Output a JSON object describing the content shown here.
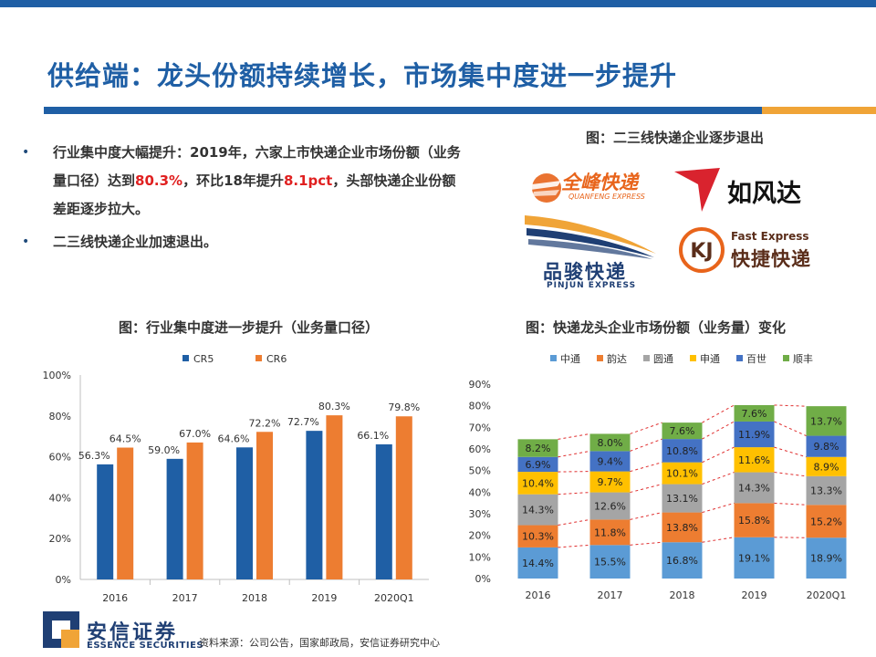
{
  "title": "供给端：龙头份额持续增长，市场集中度进一步提升",
  "bullets": [
    {
      "marker": "•",
      "parts": [
        {
          "text": "行业集中度大幅提升：2019年，六家上市快递企业市场份额（业务量口径）达到",
          "highlight": false
        },
        {
          "text": "80.3%",
          "highlight": true
        },
        {
          "text": "，环比18年提升",
          "highlight": false
        },
        {
          "text": "8.1pct",
          "highlight": true
        },
        {
          "text": "，头部快递企业份额差距逐步拉大。",
          "highlight": false
        }
      ]
    },
    {
      "marker": "•",
      "parts": [
        {
          "text": "二三线快递企业加速退出。",
          "highlight": false
        }
      ]
    }
  ],
  "logos_section": {
    "title": "图：二三线快递企业逐步退出",
    "logos": [
      {
        "name": "quanfeng",
        "cn": "全峰快递",
        "en": "QUANFENG EXPRESS",
        "color": "#e8641b"
      },
      {
        "name": "rufengda",
        "cn": "如风达",
        "color": "#d9232e"
      },
      {
        "name": "pinjun",
        "cn": "品骏快递",
        "en": "PINJUN EXPRESS",
        "color": "#1f3f74",
        "accent": "#f0a437"
      },
      {
        "name": "kuaijie",
        "cn": "快捷快递",
        "en": "Fast Express",
        "mark": "KJ",
        "color": "#5a2d1a",
        "accent": "#e8641b"
      }
    ]
  },
  "chart_data": [
    {
      "type": "bar",
      "title": "图：行业集中度进一步提升（业务量口径）",
      "categories": [
        "2016",
        "2017",
        "2018",
        "2019",
        "2020Q1"
      ],
      "series": [
        {
          "name": "CR5",
          "values": [
            56.3,
            59.0,
            64.6,
            72.7,
            66.1
          ],
          "labels": [
            "56.3%",
            "59.0%",
            "64.6%",
            "72.7%",
            "66.1%"
          ],
          "color": "#1f5fa5"
        },
        {
          "name": "CR6",
          "values": [
            64.5,
            67.0,
            72.2,
            80.3,
            79.8
          ],
          "labels": [
            "64.5%",
            "67.0%",
            "72.2%",
            "80.3%",
            "79.8%"
          ],
          "color": "#ed7d31"
        }
      ],
      "ylim": [
        0,
        100
      ],
      "yticks": [
        "0%",
        "20%",
        "40%",
        "60%",
        "80%",
        "100%"
      ],
      "legend": "top",
      "grid": false
    },
    {
      "type": "bar",
      "stacked": true,
      "title": "图：快递龙头企业市场份额（业务量）变化",
      "categories": [
        "2016",
        "2017",
        "2018",
        "2019",
        "2020Q1"
      ],
      "series": [
        {
          "name": "中通",
          "values": [
            14.4,
            15.5,
            16.8,
            19.1,
            18.9
          ],
          "labels": [
            "14.4%",
            "15.5%",
            "16.8%",
            "19.1%",
            "18.9%"
          ],
          "color": "#5b9bd5"
        },
        {
          "name": "韵达",
          "values": [
            10.3,
            11.8,
            13.8,
            15.8,
            15.2
          ],
          "labels": [
            "10.3%",
            "11.8%",
            "13.8%",
            "15.8%",
            "15.2%"
          ],
          "color": "#ed7d31"
        },
        {
          "name": "圆通",
          "values": [
            14.3,
            12.6,
            13.1,
            14.3,
            13.3
          ],
          "labels": [
            "14.3%",
            "12.6%",
            "13.1%",
            "14.3%",
            "13.3%"
          ],
          "color": "#a5a5a5"
        },
        {
          "name": "申通",
          "values": [
            10.4,
            9.7,
            10.1,
            11.6,
            8.9
          ],
          "labels": [
            "10.4%",
            "9.7%",
            "10.1%",
            "11.6%",
            "8.9%"
          ],
          "color": "#ffc000"
        },
        {
          "name": "百世",
          "values": [
            6.9,
            9.4,
            10.8,
            11.9,
            9.8
          ],
          "labels": [
            "6.9%",
            "9.4%",
            "10.8%",
            "11.9%",
            "9.8%"
          ],
          "color": "#4472c4"
        },
        {
          "name": "顺丰",
          "values": [
            8.2,
            8.0,
            7.6,
            7.6,
            13.7
          ],
          "labels": [
            "8.2%",
            "8.0%",
            "7.6%",
            "7.6%",
            "13.7%"
          ],
          "color": "#70ad47"
        }
      ],
      "ylim": [
        0,
        90
      ],
      "yticks": [
        "0%",
        "10%",
        "20%",
        "30%",
        "40%",
        "50%",
        "60%",
        "70%",
        "80%",
        "90%"
      ],
      "legend": "top",
      "grid": false,
      "connector_lines": "red dashed"
    }
  ],
  "footer": {
    "source": "资料来源：公司公告，国家邮政局，安信证券研究中心",
    "brand_cn": "安信证券",
    "brand_en": "ESSENCE SECURITIES",
    "brand_color": "#1f3f74",
    "brand_accent": "#f0a437"
  }
}
